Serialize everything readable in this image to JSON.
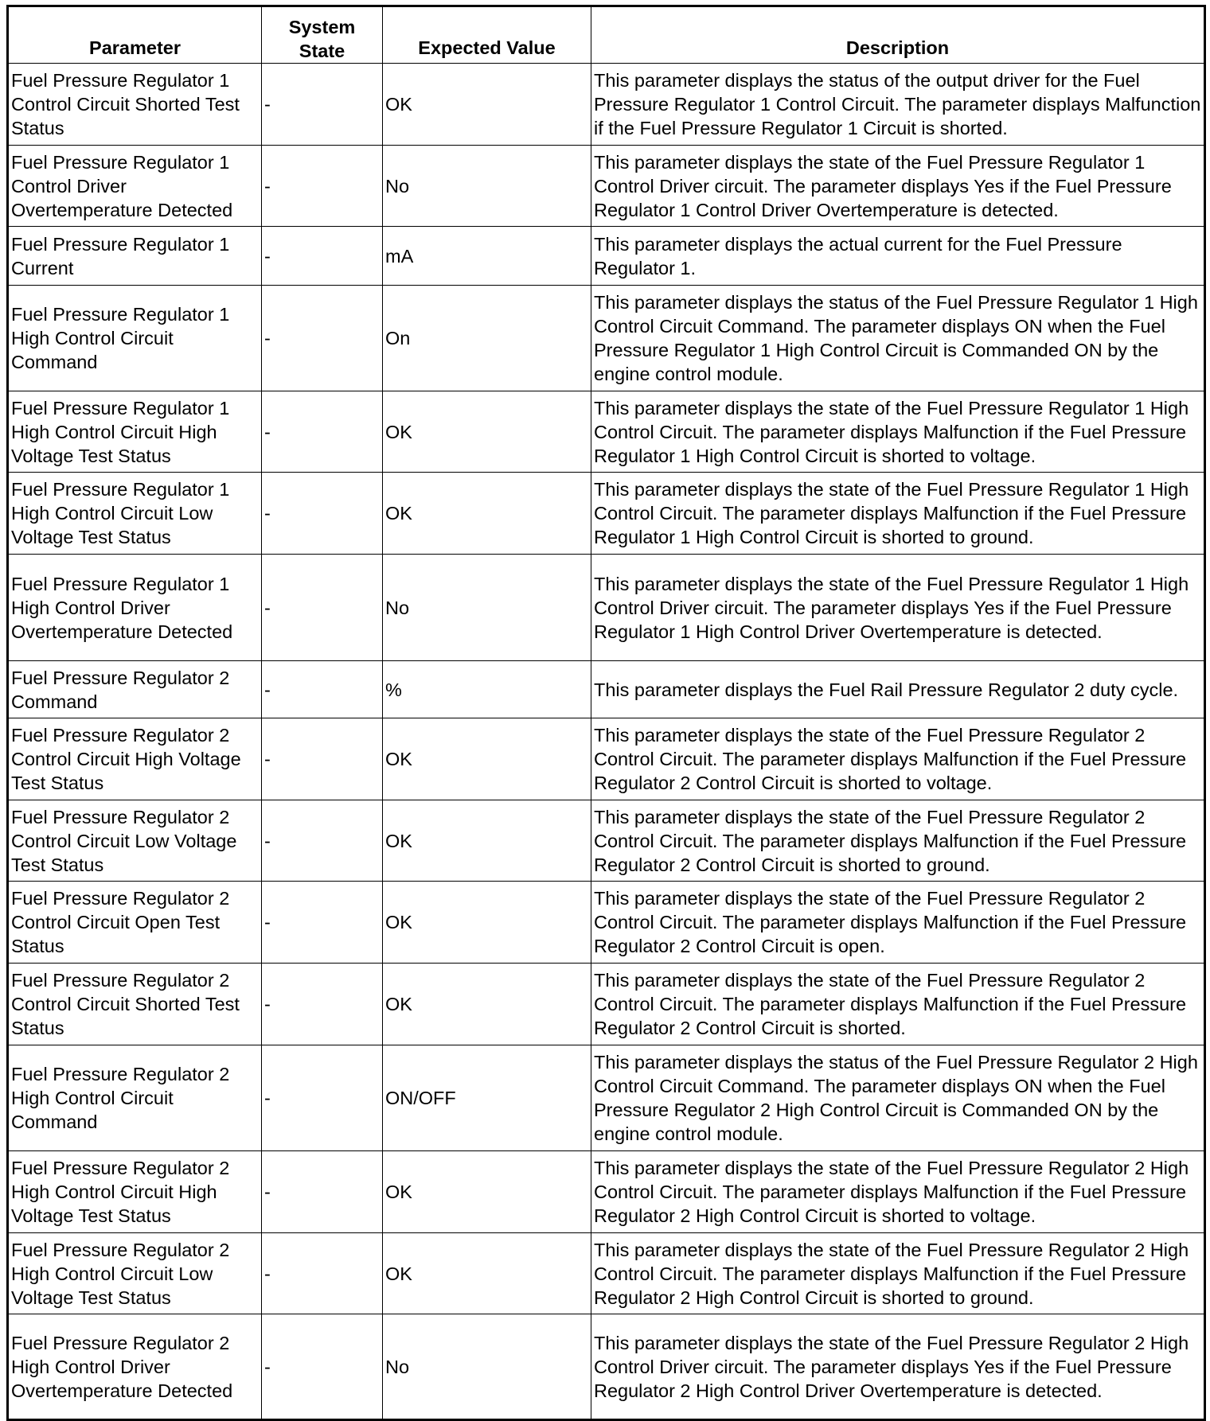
{
  "headers": [
    "Parameter",
    "System State",
    "Expected Value",
    "Description"
  ],
  "rows": [
    [
      "Fuel Pressure Regulator 1 Control Circuit Shorted Test Status",
      "-",
      "OK",
      "This parameter displays the status of the output driver for the Fuel Pressure Regulator 1 Control Circuit. The parameter displays Malfunction if the Fuel Pressure Regulator 1 Circuit is shorted."
    ],
    [
      "Fuel Pressure Regulator 1 Control Driver Overtemperature Detected",
      "-",
      "No",
      "This parameter displays the state of the Fuel Pressure Regulator 1 Control Driver circuit. The parameter displays Yes if the Fuel Pressure Regulator 1 Control Driver Overtemperature is detected."
    ],
    [
      "Fuel Pressure Regulator 1 Current",
      "-",
      "mA",
      "This parameter displays the actual current for the Fuel Pressure Regulator 1."
    ],
    [
      "Fuel Pressure Regulator 1 High Control Circuit Command",
      "-",
      "On",
      "This parameter displays the status of the Fuel Pressure Regulator 1 High Control Circuit Command. The parameter displays ON when the Fuel Pressure Regulator 1 High Control Circuit is Commanded ON by the engine control module."
    ],
    [
      "Fuel Pressure Regulator 1 High Control Circuit High Voltage Test Status",
      "-",
      "OK",
      "This parameter displays the state of the Fuel Pressure Regulator 1 High Control Circuit. The parameter displays Malfunction if the Fuel Pressure Regulator 1 High Control Circuit is shorted to voltage."
    ],
    [
      "Fuel Pressure Regulator 1 High Control Circuit Low Voltage Test Status",
      "-",
      "OK",
      "This parameter displays the state of the Fuel Pressure Regulator 1 High Control Circuit. The parameter displays Malfunction if the Fuel Pressure Regulator 1 High Control Circuit is shorted to ground."
    ],
    [
      "Fuel Pressure Regulator 1 High Control Driver Overtemperature Detected",
      "-",
      "No",
      "This parameter displays the state of the Fuel Pressure Regulator 1 High Control Driver circuit. The parameter displays Yes if the Fuel Pressure Regulator 1 High Control Driver Overtemperature is detected."
    ],
    [
      "Fuel Pressure Regulator 2 Command",
      "-",
      "%",
      "This parameter displays the Fuel Rail Pressure Regulator 2 duty cycle."
    ],
    [
      "Fuel Pressure Regulator 2 Control Circuit High Voltage Test Status",
      "-",
      "OK",
      "This parameter displays the state of the Fuel Pressure Regulator 2 Control Circuit. The parameter displays Malfunction if the Fuel Pressure Regulator 2 Control Circuit is shorted to voltage."
    ],
    [
      "Fuel Pressure Regulator 2 Control Circuit Low Voltage Test Status",
      "-",
      "OK",
      "This parameter displays the state of the Fuel Pressure Regulator 2 Control Circuit. The parameter displays Malfunction if the Fuel Pressure Regulator 2 Control Circuit is shorted to ground."
    ],
    [
      "Fuel Pressure Regulator 2 Control Circuit Open Test Status",
      "-",
      "OK",
      "This parameter displays the state of the Fuel Pressure Regulator 2 Control Circuit. The parameter displays Malfunction if the Fuel Pressure Regulator 2 Control Circuit is open."
    ],
    [
      "Fuel Pressure Regulator 2 Control Circuit Shorted Test Status",
      "-",
      "OK",
      "This parameter displays the state of the Fuel Pressure Regulator 2 Control Circuit. The parameter displays Malfunction if the Fuel Pressure Regulator 2 Control Circuit is shorted."
    ],
    [
      "Fuel Pressure Regulator 2 High Control Circuit Command",
      "-",
      "ON/OFF",
      "This parameter displays the status of the Fuel Pressure Regulator 2 High Control Circuit Command. The parameter displays ON when the Fuel Pressure Regulator 2 High Control Circuit is Commanded ON by the engine control module."
    ],
    [
      "Fuel Pressure Regulator 2 High Control Circuit High Voltage Test Status",
      "-",
      "OK",
      "This parameter displays the state of the Fuel Pressure Regulator 2 High Control Circuit. The parameter displays Malfunction if the Fuel Pressure Regulator 2 High Control Circuit is shorted to voltage."
    ],
    [
      "Fuel Pressure Regulator 2 High Control Circuit Low Voltage Test Status",
      "-",
      "OK",
      "This parameter displays the state of the Fuel Pressure Regulator 2 High Control Circuit. The parameter displays Malfunction if the Fuel Pressure Regulator 2 High Control Circuit is shorted to ground."
    ],
    [
      "Fuel Pressure Regulator 2 High Control Driver Overtemperature Detected",
      "-",
      "No",
      "This parameter displays the state of the Fuel Pressure Regulator 2 High Control Driver circuit. The parameter displays Yes if the Fuel Pressure Regulator 2 High Control Driver Overtemperature is detected."
    ]
  ]
}
